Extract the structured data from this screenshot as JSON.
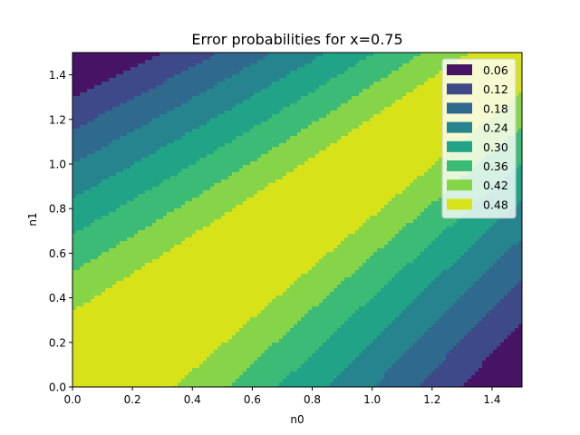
{
  "chart_data": {
    "type": "heatmap",
    "subtype": "filled-contour",
    "title": "Error probabilities for x=0.75",
    "xlabel": "n0",
    "ylabel": "n1",
    "xlim": [
      0.0,
      1.5
    ],
    "ylim": [
      0.0,
      1.5
    ],
    "xticks": [
      "0.0",
      "0.2",
      "0.4",
      "0.6",
      "0.8",
      "1.0",
      "1.2",
      "1.4"
    ],
    "yticks": [
      "0.0",
      "0.2",
      "0.4",
      "0.6",
      "0.8",
      "1.0",
      "1.2",
      "1.4"
    ],
    "levels": [
      {
        "label": "0.06",
        "color": "#471365"
      },
      {
        "label": "0.12",
        "color": "#3e4989"
      },
      {
        "label": "0.18",
        "color": "#30698e"
      },
      {
        "label": "0.24",
        "color": "#25848e"
      },
      {
        "label": "0.30",
        "color": "#20a386"
      },
      {
        "label": "0.36",
        "color": "#3bbb75"
      },
      {
        "label": "0.42",
        "color": "#86d549"
      },
      {
        "label": "0.48",
        "color": "#d8e219"
      }
    ],
    "legend_position": "top-right",
    "grid": false
  }
}
